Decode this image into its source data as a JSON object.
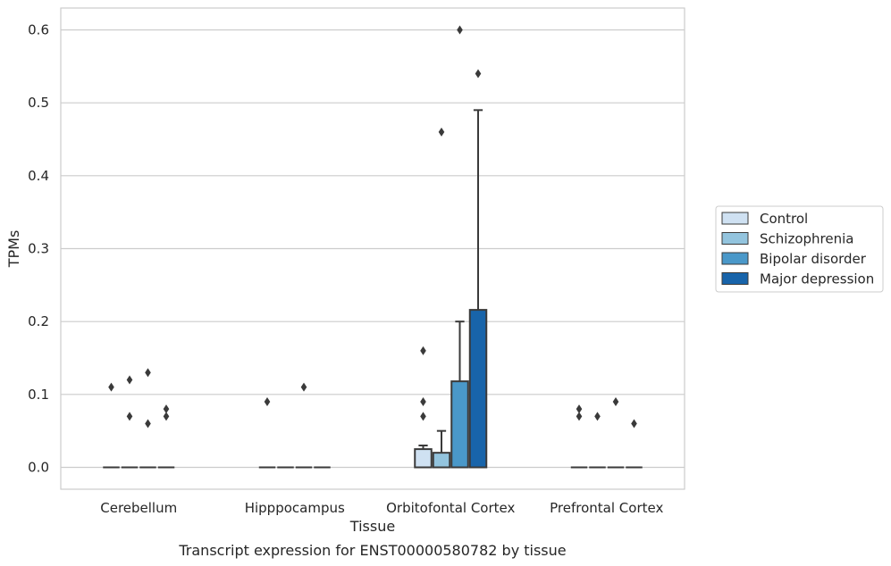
{
  "chart_data": {
    "type": "box",
    "title": "",
    "caption": "Transcript expression for ENST00000580782 by tissue",
    "xlabel": "Tissue",
    "ylabel": "TPMs",
    "ylim": [
      -0.03,
      0.63
    ],
    "yticks": [
      "0.0",
      "0.1",
      "0.2",
      "0.3",
      "0.4",
      "0.5",
      "0.6"
    ],
    "ytick_values": [
      0,
      0.1,
      0.2,
      0.3,
      0.4,
      0.5,
      0.6
    ],
    "grid": true,
    "legend_position": "right",
    "categories": [
      "Cerebellum",
      "Hipppocampus",
      "Orbitofontal Cortex",
      "Prefrontal Cortex"
    ],
    "series": [
      {
        "name": "Control",
        "color": "#cfe1f2",
        "boxes": [
          {
            "q1": 0,
            "median": 0,
            "q3": 0,
            "whisker_low": 0,
            "whisker_high": 0,
            "outliers": [
              0.11
            ]
          },
          {
            "q1": 0,
            "median": 0,
            "q3": 0,
            "whisker_low": 0,
            "whisker_high": 0,
            "outliers": [
              0.09
            ]
          },
          {
            "q1": 0,
            "median": 0,
            "q3": 0.025,
            "whisker_low": 0,
            "whisker_high": 0.03,
            "outliers": [
              0.16,
              0.09,
              0.07
            ]
          },
          {
            "q1": 0,
            "median": 0,
            "q3": 0,
            "whisker_low": 0,
            "whisker_high": 0,
            "outliers": [
              0.08,
              0.07
            ]
          }
        ]
      },
      {
        "name": "Schizophrenia",
        "color": "#93c4de",
        "boxes": [
          {
            "q1": 0,
            "median": 0,
            "q3": 0,
            "whisker_low": 0,
            "whisker_high": 0,
            "outliers": [
              0.12,
              0.07
            ]
          },
          {
            "q1": 0,
            "median": 0,
            "q3": 0,
            "whisker_low": 0,
            "whisker_high": 0,
            "outliers": []
          },
          {
            "q1": 0,
            "median": 0,
            "q3": 0.02,
            "whisker_low": 0,
            "whisker_high": 0.05,
            "outliers": [
              0.46
            ]
          },
          {
            "q1": 0,
            "median": 0,
            "q3": 0,
            "whisker_low": 0,
            "whisker_high": 0,
            "outliers": [
              0.07
            ]
          }
        ]
      },
      {
        "name": "Bipolar disorder",
        "color": "#4a98c9",
        "boxes": [
          {
            "q1": 0,
            "median": 0,
            "q3": 0,
            "whisker_low": 0,
            "whisker_high": 0,
            "outliers": [
              0.13,
              0.06
            ]
          },
          {
            "q1": 0,
            "median": 0,
            "q3": 0,
            "whisker_low": 0,
            "whisker_high": 0,
            "outliers": [
              0.11
            ]
          },
          {
            "q1": 0,
            "median": 0,
            "q3": 0.118,
            "whisker_low": 0,
            "whisker_high": 0.2,
            "outliers": [
              0.6
            ]
          },
          {
            "q1": 0,
            "median": 0,
            "q3": 0,
            "whisker_low": 0,
            "whisker_high": 0,
            "outliers": [
              0.09
            ]
          }
        ]
      },
      {
        "name": "Major depression",
        "color": "#1864aa",
        "boxes": [
          {
            "q1": 0,
            "median": 0,
            "q3": 0,
            "whisker_low": 0,
            "whisker_high": 0,
            "outliers": [
              0.08,
              0.07
            ]
          },
          {
            "q1": 0,
            "median": 0,
            "q3": 0,
            "whisker_low": 0,
            "whisker_high": 0,
            "outliers": []
          },
          {
            "q1": 0,
            "median": 0,
            "q3": 0.216,
            "whisker_low": 0,
            "whisker_high": 0.49,
            "outliers": [
              0.54
            ]
          },
          {
            "q1": 0,
            "median": 0,
            "q3": 0,
            "whisker_low": 0,
            "whisker_high": 0,
            "outliers": [
              0.06
            ]
          }
        ]
      }
    ]
  }
}
